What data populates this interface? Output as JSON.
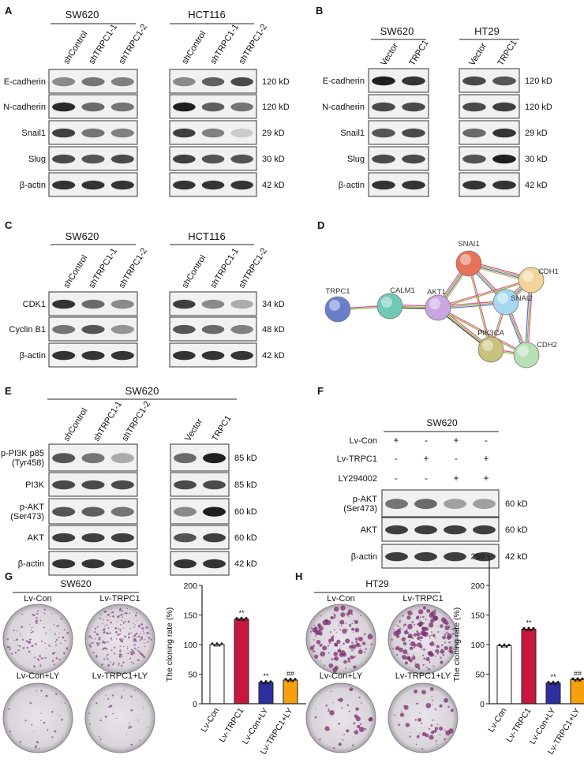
{
  "panels": {
    "A": {
      "letter": "A",
      "left_title": "SW620",
      "right_title": "HCT116",
      "lanes": [
        "shControl",
        "shTRPC1-1",
        "shTRPC1-2"
      ],
      "rows": [
        "E-cadherin",
        "N-cadherin",
        "Snail1",
        "Slug",
        "β-actin"
      ],
      "sizes": [
        "120 kD",
        "120 kD",
        "29 kD",
        "30 kD",
        "42 kD"
      ]
    },
    "B": {
      "letter": "B",
      "left_title": "SW620",
      "right_title": "HT29",
      "lanes": [
        "Vector",
        "TRPC1"
      ],
      "rows": [
        "E-cadherin",
        "N-cadherin",
        "Snail1",
        "Slug",
        "β-actin"
      ],
      "sizes": [
        "120 kD",
        "120 kD",
        "29 kD",
        "30 kD",
        "42 kD"
      ]
    },
    "C": {
      "letter": "C",
      "left_title": "SW620",
      "right_title": "HCT116",
      "lanes": [
        "shControl",
        "shTRPC1-1",
        "shTRPC1-2"
      ],
      "rows": [
        "CDK1",
        "Cyclin B1",
        "β-actin"
      ],
      "sizes": [
        "34 kD",
        "48 kD",
        "42 kD"
      ]
    },
    "D": {
      "letter": "D",
      "nodes": [
        "TRPC1",
        "CALM1",
        "AKT1",
        "SNAI1",
        "CDH1",
        "SNAI2",
        "PIK3CA",
        "CDH2"
      ]
    },
    "E": {
      "letter": "E",
      "title": "SW620",
      "lanes_left": [
        "shControl",
        "shTRPC1-1",
        "shTRPC1-2"
      ],
      "lanes_right": [
        "Vector",
        "TRPC1"
      ],
      "rows": [
        "p-PI3K p85\n(Tyr458)",
        "PI3K",
        "p-AKT\n(Ser473)",
        "AKT",
        "β-actin"
      ],
      "sizes": [
        "85 kD",
        "85 kD",
        "60 kD",
        "60 kD",
        "42 kD"
      ]
    },
    "F": {
      "letter": "F",
      "title": "SW620",
      "conditions": [
        {
          "label": "Lv-Con",
          "signs": [
            "+",
            "-",
            "+",
            "-"
          ]
        },
        {
          "label": "Lv-TRPC1",
          "signs": [
            "-",
            "+",
            "-",
            "+"
          ]
        },
        {
          "label": "LY294002",
          "signs": [
            "-",
            "-",
            "+",
            "+"
          ]
        }
      ],
      "rows": [
        "p-AKT\n(Ser473)",
        "AKT",
        "β-actin"
      ],
      "sizes": [
        "60 kD",
        "60 kD",
        "42 kD"
      ]
    },
    "G": {
      "letter": "G",
      "title": "SW620",
      "plates": [
        "Lv-Con",
        "Lv-TRPC1",
        "Lv-Con+LY",
        "Lv-TRPC1+LY"
      ]
    },
    "H": {
      "letter": "H",
      "title": "HT29",
      "plates": [
        "Lv-Con",
        "Lv-TRPC1",
        "Lv-Con+LY",
        "Lv-TRPC1+LY"
      ]
    }
  },
  "chart_data": [
    {
      "type": "bar",
      "panel": "G",
      "categories": [
        "Lv-Con",
        "Lv-TRPC1",
        "Lv-Con+LY",
        "Lv-TRPC1+LY"
      ],
      "values": [
        100,
        143,
        36,
        40
      ],
      "ylabel": "The cloning rate (%)",
      "ylim": [
        0,
        200
      ],
      "yticks": [
        0,
        50,
        100,
        150,
        200
      ],
      "annotations": [
        "",
        "**",
        "**",
        "##"
      ],
      "colors": [
        "#ffffff",
        "#c8163f",
        "#2e2fa0",
        "#f5a10c"
      ]
    },
    {
      "type": "bar",
      "panel": "H",
      "categories": [
        "Lv-Con",
        "Lv-TRPC1",
        "Lv-Con+LY",
        "Lv-TRPC1+LY"
      ],
      "values": [
        98,
        126,
        35,
        41
      ],
      "ylabel": "The cloning rate (%)",
      "ylim": [
        0,
        200
      ],
      "yticks": [
        0,
        50,
        100,
        150,
        200,
        250
      ],
      "annotations": [
        "",
        "**",
        "**",
        "##"
      ],
      "colors": [
        "#ffffff",
        "#c8163f",
        "#2e2fa0",
        "#f5a10c"
      ]
    }
  ]
}
